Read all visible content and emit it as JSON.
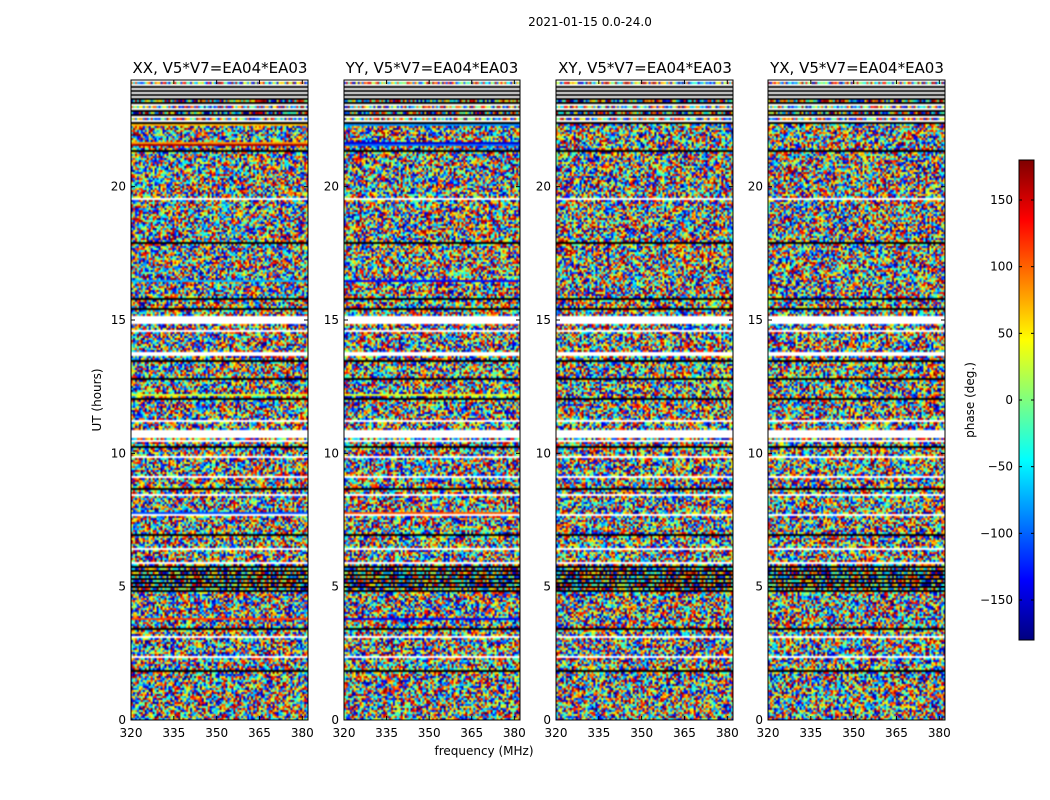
{
  "chart_data": {
    "type": "heatmap",
    "title": "2021-01-15 0.0-24.0",
    "xlabel": "frequency (MHz)",
    "ylabel": "UT (hours)",
    "xlim": [
      320,
      382
    ],
    "ylim": [
      0,
      24
    ],
    "xticks": [
      "320",
      "335",
      "350",
      "365",
      "380"
    ],
    "yticks": [
      "0",
      "5",
      "10",
      "15",
      "20"
    ],
    "panels": [
      {
        "title": "XX, V5*V7=EA04*EA03"
      },
      {
        "title": "YY, V5*V7=EA04*EA03"
      },
      {
        "title": "XY, V5*V7=EA04*EA03"
      },
      {
        "title": "YX, V5*V7=EA04*EA03"
      }
    ],
    "colorbar": {
      "label": "phase (deg.)",
      "range": [
        -180,
        180
      ],
      "ticks": [
        "150",
        "100",
        "50",
        "0",
        "−50",
        "−100",
        "−150"
      ],
      "colormap": "jet",
      "colors": [
        "#00007f",
        "#0000ff",
        "#007fff",
        "#00ffff",
        "#7fff7f",
        "#ffff00",
        "#ff7f00",
        "#ff0000",
        "#7f0000"
      ]
    },
    "data_description_values": {
      "phase_range_deg": [
        -180,
        180
      ]
    }
  }
}
